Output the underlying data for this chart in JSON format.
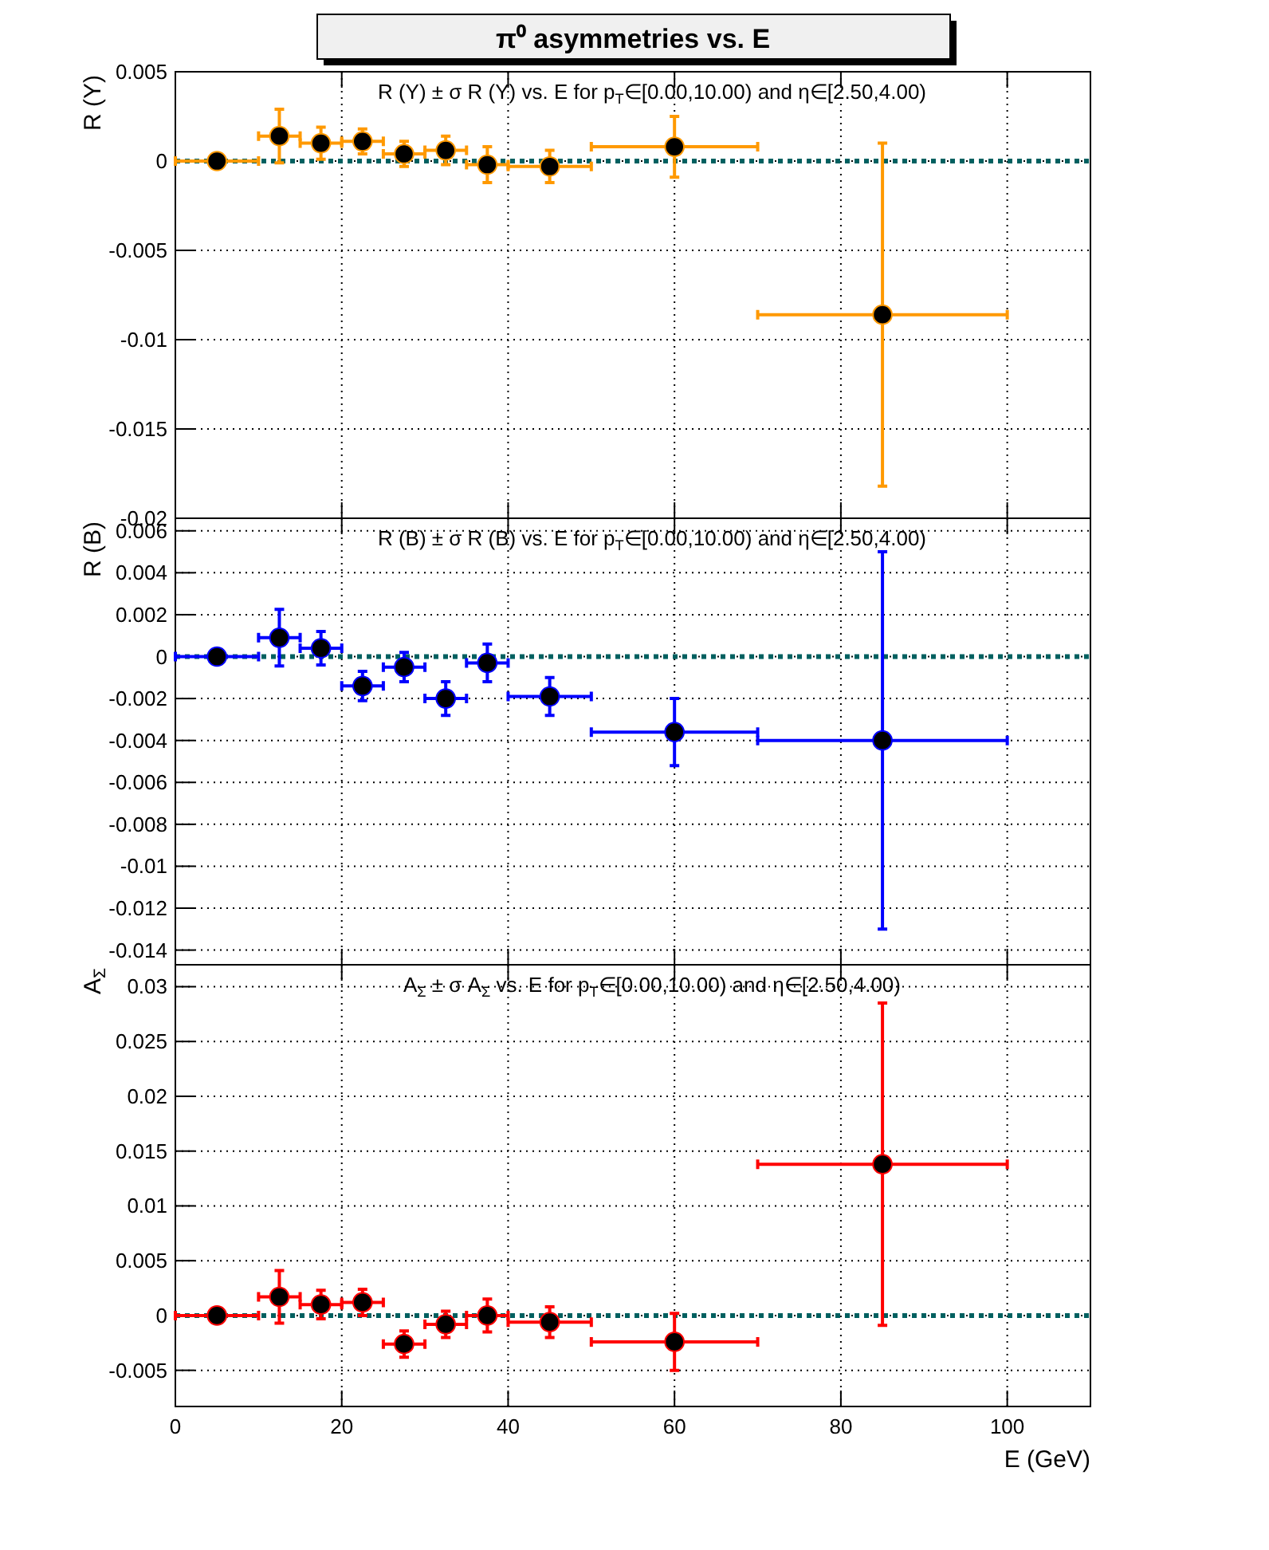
{
  "chart_data": [
    {
      "type": "scatter",
      "title": "π⁰ asymmetries vs. E",
      "subtitle": "R (Y) ± σ R (Y) vs. E for p$_{T}$∈[0.00,10.00) and η∈[2.50,4.00)",
      "ylabel": "R (Y)",
      "x": [
        5,
        12.5,
        17.5,
        22.5,
        27.5,
        32.5,
        37.5,
        45,
        60,
        85
      ],
      "xlim": [
        0,
        110
      ],
      "xticks": [
        0,
        20,
        40,
        60,
        80,
        100
      ],
      "ylim": [
        -0.02,
        0.005
      ],
      "yticks": [
        -0.02,
        -0.015,
        -0.01,
        -0.005,
        0,
        0.005
      ],
      "grid": true,
      "marker": "circle",
      "tick_labels": "y",
      "series": [
        {
          "color": "#ff9900",
          "values": [
            0,
            0.0014,
            0.001,
            0.0011,
            0.0004,
            0.0006,
            -0.0002,
            -0.0003,
            0.0008,
            -0.0086
          ],
          "errors": [
            null,
            0.0015,
            0.0009,
            0.0007,
            0.0007,
            0.0008,
            0.001,
            0.0009,
            0.0017,
            0.0096
          ],
          "xerrors": [
            5,
            2.5,
            2.5,
            2.5,
            2.5,
            2.5,
            2.5,
            5,
            10,
            15
          ]
        }
      ],
      "ref_lines": [
        {
          "axis": "y",
          "value": 0,
          "color": "#006060",
          "line_style": "dotted"
        }
      ]
    },
    {
      "type": "scatter",
      "subtitle": "R (B) ± σ R (B) vs. E for p$_{T}$∈[0.00,10.00) and η∈[2.50,4.00)",
      "ylabel": "R (B)",
      "x": [
        5,
        12.5,
        17.5,
        22.5,
        27.5,
        32.5,
        37.5,
        45,
        60,
        85
      ],
      "xlim": [
        0,
        110
      ],
      "xticks": [
        0,
        20,
        40,
        60,
        80,
        100
      ],
      "ylim": [
        -0.0147,
        0.0066
      ],
      "yticks": [
        -0.014,
        -0.012,
        -0.01,
        -0.008,
        -0.006,
        -0.004,
        -0.002,
        0,
        0.002,
        0.004,
        0.006
      ],
      "grid": true,
      "marker": "circle",
      "tick_labels": "y",
      "series": [
        {
          "color": "#0000ff",
          "values": [
            0,
            0.0009,
            0.0004,
            -0.0014,
            -0.0005,
            -0.002,
            -0.0003,
            -0.0019,
            -0.0036,
            -0.004
          ],
          "errors": [
            null,
            0.00135,
            0.0008,
            0.0007,
            0.0007,
            0.0008,
            0.0009,
            0.0009,
            0.0016,
            0.009
          ],
          "xerrors": [
            5,
            2.5,
            2.5,
            2.5,
            2.5,
            2.5,
            2.5,
            5,
            10,
            15
          ]
        }
      ],
      "ref_lines": [
        {
          "axis": "y",
          "value": 0,
          "color": "#006060",
          "line_style": "dotted"
        }
      ]
    },
    {
      "type": "scatter",
      "subtitle": "A$_{Σ}$ ± σ A$_{Σ}$ vs. E for p$_{T}$∈[0.00,10.00) and η∈[2.50,4.00)",
      "xlabel": "E (GeV)",
      "ylabel": "A$_{Σ}$",
      "x": [
        5,
        12.5,
        17.5,
        22.5,
        27.5,
        32.5,
        37.5,
        45,
        60,
        85
      ],
      "xlim": [
        0,
        110
      ],
      "xticks": [
        0,
        20,
        40,
        60,
        80,
        100
      ],
      "ylim": [
        -0.0083,
        0.032
      ],
      "yticks": [
        -0.005,
        0,
        0.005,
        0.01,
        0.015,
        0.02,
        0.025,
        0.03
      ],
      "grid": true,
      "marker": "circle",
      "series": [
        {
          "color": "#ff0000",
          "values": [
            0,
            0.0017,
            0.001,
            0.0012,
            -0.0026,
            -0.0008,
            0,
            -0.0006,
            -0.0024,
            0.0138
          ],
          "errors": [
            null,
            0.0024,
            0.0013,
            0.0012,
            0.0012,
            0.0012,
            0.0015,
            0.0014,
            0.0026,
            0.0147
          ],
          "xerrors": [
            5,
            2.5,
            2.5,
            2.5,
            2.5,
            2.5,
            2.5,
            5,
            10,
            15
          ]
        }
      ],
      "ref_lines": [
        {
          "axis": "y",
          "value": 0,
          "color": "#006060",
          "line_style": "dotted"
        }
      ]
    }
  ]
}
